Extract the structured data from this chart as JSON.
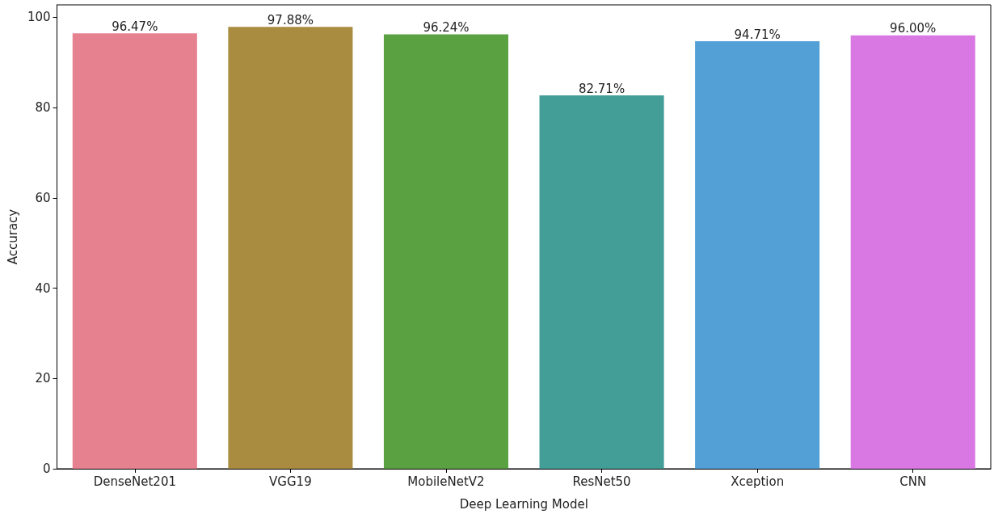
{
  "chart_data": {
    "type": "bar",
    "xlabel": "Deep Learning Model",
    "ylabel": "Accuracy",
    "categories": [
      "DenseNet201",
      "VGG19",
      "MobileNetV2",
      "ResNet50",
      "Xception",
      "CNN"
    ],
    "values": [
      96.47,
      97.88,
      96.24,
      82.71,
      94.71,
      96.0
    ],
    "value_labels": [
      "96.47%",
      "97.88%",
      "96.24%",
      "82.71%",
      "94.71%",
      "96.00%"
    ],
    "colors": [
      "#e68190",
      "#a98c40",
      "#5aa142",
      "#439e98",
      "#52a0d6",
      "#d977e3"
    ],
    "ylim": [
      0,
      102.77
    ],
    "yticks": [
      0,
      20,
      40,
      60,
      80,
      100
    ],
    "grid": false
  }
}
